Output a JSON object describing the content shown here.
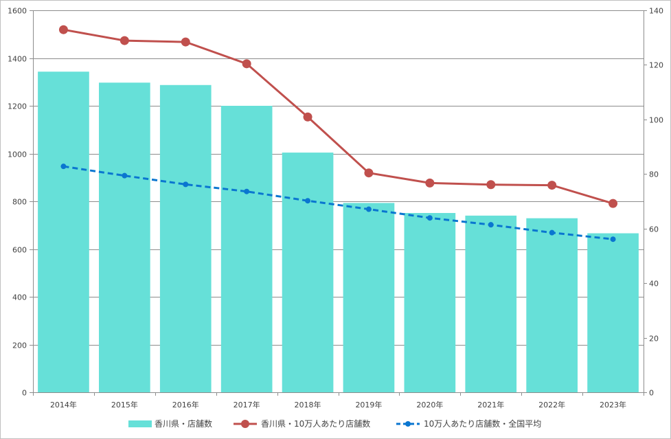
{
  "chart_data": {
    "type": "bar",
    "categories": [
      "2014年",
      "2015年",
      "2016年",
      "2017年",
      "2018年",
      "2019年",
      "2020年",
      "2021年",
      "2022年",
      "2023年"
    ],
    "series": [
      {
        "name": "香川県・店舗数",
        "kind": "bar",
        "axis": "left",
        "color": "#66e0d8",
        "values": [
          1343,
          1297,
          1287,
          1200,
          1004,
          793,
          751,
          740,
          729,
          666
        ]
      },
      {
        "name": "香川県・10万人あたり店舗数",
        "kind": "line",
        "axis": "right",
        "color": "#c0504d",
        "style": "solid",
        "values": [
          132.9,
          128.9,
          128.4,
          120.4,
          100.9,
          80.4,
          76.7,
          76.1,
          75.9,
          69.2
        ]
      },
      {
        "name": "10万人あたり店舗数・全国平均",
        "kind": "line",
        "axis": "right",
        "color": "#0a76d0",
        "style": "dashed",
        "values": [
          82.8,
          79.4,
          76.2,
          73.6,
          70.2,
          67.1,
          63.9,
          61.4,
          58.5,
          56.1
        ]
      }
    ],
    "y_left": {
      "min": 0,
      "max": 1600,
      "step": 200,
      "ticks": [
        "0",
        "200",
        "400",
        "600",
        "800",
        "1000",
        "1200",
        "1400",
        "1600"
      ]
    },
    "y_right": {
      "min": 0,
      "max": 140,
      "step": 20,
      "ticks": [
        "0",
        "20",
        "40",
        "60",
        "80",
        "100",
        "120",
        "140"
      ]
    },
    "grid": true,
    "legend": "bottom"
  }
}
